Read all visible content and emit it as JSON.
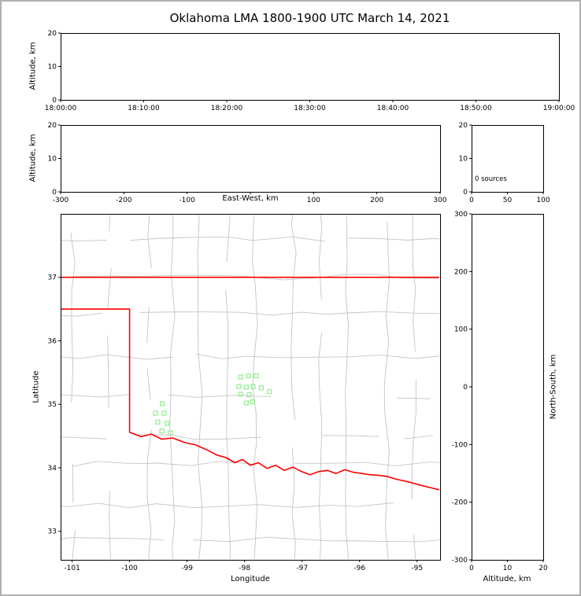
{
  "colors": {
    "background": "#ffffff",
    "outer_frame": "#b0b0b0",
    "axis": "#000000",
    "county_lines": "#c4c4c4",
    "state_border": "#ff0000",
    "marker_green": "#90ee90"
  },
  "chart_data": {
    "type": "scatter",
    "title": "Oklahoma LMA 1800-1900 UTC March 14, 2021",
    "panels": [
      {
        "id": "time_height",
        "ylabel": "Altitude, km",
        "ylim": [
          0,
          20
        ],
        "yticks": [
          0,
          10,
          20
        ],
        "xticks_time": [
          "18:00:00",
          "18:10:00",
          "18:20:00",
          "18:30:00",
          "18:40:00",
          "18:50:00",
          "19:00:00"
        ],
        "points": []
      },
      {
        "id": "ew_height",
        "xlabel": "East-West, km",
        "ylabel": "Altitude, km",
        "xlim": [
          -300,
          300
        ],
        "xticks": [
          -300,
          -200,
          -100,
          0,
          100,
          200,
          300
        ],
        "ylim": [
          0,
          20
        ],
        "yticks": [
          0,
          10,
          20
        ],
        "points": []
      },
      {
        "id": "alt_histogram",
        "xlim": [
          0,
          100
        ],
        "xticks": [
          0,
          50,
          100
        ],
        "ylim": [
          0,
          20
        ],
        "yticks": [
          0,
          10,
          20
        ],
        "annotation": "0 sources",
        "counts": []
      },
      {
        "id": "plan_view",
        "xlabel": "Longitude",
        "ylabel": "Latitude",
        "xlim": [
          -101.2,
          -94.6
        ],
        "xticks": [
          -101,
          -100,
          -99,
          -98,
          -97,
          -96,
          -95
        ],
        "ylim": [
          32.55,
          38.0
        ],
        "yticks": [
          33,
          34,
          35,
          36,
          37
        ],
        "marker_shape": "open-square",
        "marker_color": "#90ee90",
        "green_square_markers": [
          [
            -99.43,
            35.01
          ],
          [
            -99.55,
            34.86
          ],
          [
            -99.4,
            34.86
          ],
          [
            -99.51,
            34.72
          ],
          [
            -99.35,
            34.7
          ],
          [
            -99.44,
            34.58
          ],
          [
            -99.29,
            34.55
          ],
          [
            -98.07,
            35.43
          ],
          [
            -97.93,
            35.45
          ],
          [
            -97.8,
            35.45
          ],
          [
            -98.1,
            35.28
          ],
          [
            -97.97,
            35.27
          ],
          [
            -97.85,
            35.28
          ],
          [
            -97.71,
            35.26
          ],
          [
            -98.07,
            35.16
          ],
          [
            -97.92,
            35.15
          ],
          [
            -97.57,
            35.2
          ],
          [
            -97.97,
            35.02
          ],
          [
            -97.86,
            35.04
          ]
        ],
        "state_border_segments": [
          [
            [
              -101.2,
              37.0
            ],
            [
              -94.6,
              37.0
            ]
          ],
          [
            [
              -101.2,
              36.5
            ],
            [
              -100.0,
              36.5
            ],
            [
              -100.0,
              34.56
            ],
            [
              -99.8,
              34.49
            ],
            [
              -99.62,
              34.53
            ],
            [
              -99.44,
              34.45
            ],
            [
              -99.25,
              34.47
            ],
            [
              -99.05,
              34.4
            ],
            [
              -98.85,
              34.36
            ],
            [
              -98.65,
              34.28
            ],
            [
              -98.48,
              34.2
            ],
            [
              -98.32,
              34.16
            ],
            [
              -98.17,
              34.08
            ],
            [
              -98.04,
              34.13
            ],
            [
              -97.9,
              34.04
            ],
            [
              -97.76,
              34.08
            ],
            [
              -97.61,
              33.99
            ],
            [
              -97.46,
              34.04
            ],
            [
              -97.31,
              33.96
            ],
            [
              -97.16,
              34.01
            ],
            [
              -97.01,
              33.94
            ],
            [
              -96.86,
              33.89
            ],
            [
              -96.71,
              33.94
            ],
            [
              -96.56,
              33.96
            ],
            [
              -96.41,
              33.91
            ],
            [
              -96.26,
              33.97
            ],
            [
              -96.11,
              33.93
            ],
            [
              -95.96,
              33.91
            ],
            [
              -95.81,
              33.89
            ],
            [
              -95.66,
              33.88
            ],
            [
              -95.51,
              33.86
            ],
            [
              -95.36,
              33.82
            ],
            [
              -95.16,
              33.78
            ],
            [
              -94.96,
              33.73
            ],
            [
              -94.6,
              33.65
            ]
          ]
        ]
      },
      {
        "id": "ns_height",
        "xlabel": "Altitude, km",
        "ylabel": "North-South, km",
        "xlim": [
          0,
          20
        ],
        "xticks": [
          0,
          10,
          20
        ],
        "ylim": [
          -300,
          300
        ],
        "yticks": [
          -300,
          -200,
          -100,
          0,
          100,
          200,
          300
        ],
        "points": []
      }
    ]
  }
}
